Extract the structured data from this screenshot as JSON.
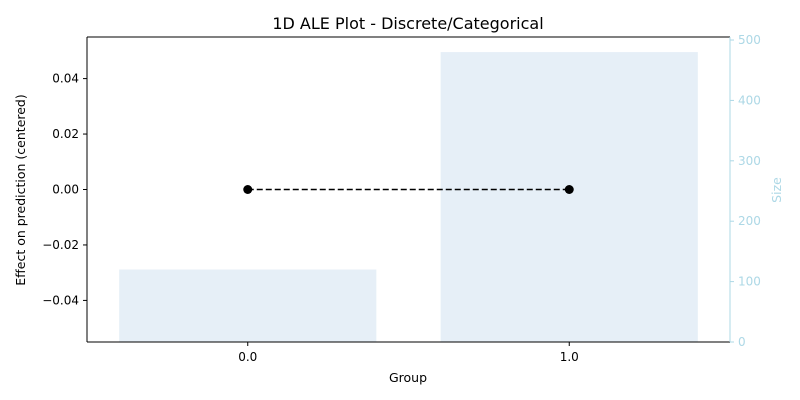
{
  "chart_data": {
    "type": "line",
    "title": "1D ALE Plot - Discrete/Categorical",
    "xlabel": "Group",
    "ylabel": "Effect on prediction (centered)",
    "y2label": "Size",
    "categories": [
      "0.0",
      "1.0"
    ],
    "series": [
      {
        "values": [
          0.0,
          0.0
        ],
        "color": "#000000",
        "style": "dashed",
        "marker": "circle"
      }
    ],
    "bars": {
      "values": [
        120,
        480
      ],
      "color": "#e6eff7",
      "axis": "secondary"
    },
    "ylim": [
      -0.055,
      0.055
    ],
    "yticks": [
      -0.04,
      -0.02,
      0.0,
      0.02,
      0.04
    ],
    "ytick_labels": [
      "−0.04",
      "−0.02",
      "0.00",
      "0.02",
      "0.04"
    ],
    "y2lim": [
      0,
      505
    ],
    "y2ticks": [
      0,
      100,
      200,
      300,
      400,
      500
    ],
    "y2tick_labels": [
      "0",
      "100",
      "200",
      "300",
      "400",
      "500"
    ],
    "secondary_axis_color": "#add8e6",
    "grid": false
  }
}
